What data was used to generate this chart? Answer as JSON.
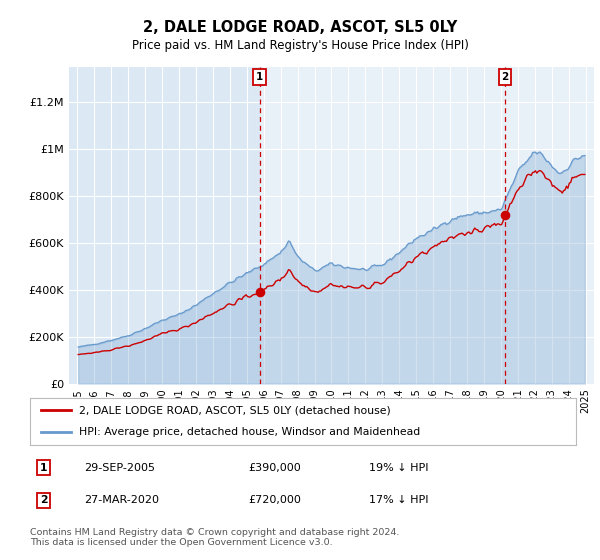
{
  "title": "2, DALE LODGE ROAD, ASCOT, SL5 0LY",
  "subtitle": "Price paid vs. HM Land Registry's House Price Index (HPI)",
  "legend_label_red": "2, DALE LODGE ROAD, ASCOT, SL5 0LY (detached house)",
  "legend_label_blue": "HPI: Average price, detached house, Windsor and Maidenhead",
  "annotation1_date": "29-SEP-2005",
  "annotation1_value": "£390,000",
  "annotation1_hpi": "19% ↓ HPI",
  "annotation2_date": "27-MAR-2020",
  "annotation2_value": "£720,000",
  "annotation2_hpi": "17% ↓ HPI",
  "footer": "Contains HM Land Registry data © Crown copyright and database right 2024.\nThis data is licensed under the Open Government Licence v3.0.",
  "bg_color": "#dce9f5",
  "white": "#ffffff",
  "red_color": "#cc0000",
  "blue_color": "#6699cc",
  "ylim": [
    0,
    1350000
  ],
  "yticks": [
    0,
    200000,
    400000,
    600000,
    800000,
    1000000,
    1200000
  ],
  "ytick_labels": [
    "£0",
    "£200K",
    "£400K",
    "£600K",
    "£800K",
    "£1M",
    "£1.2M"
  ],
  "sale1_x": 2005.75,
  "sale1_y": 390000,
  "sale2_x": 2020.25,
  "sale2_y": 720000,
  "xmin": 1994.5,
  "xmax": 2025.5,
  "xticks": [
    1995,
    1996,
    1997,
    1998,
    1999,
    2000,
    2001,
    2002,
    2003,
    2004,
    2005,
    2006,
    2007,
    2008,
    2009,
    2010,
    2011,
    2012,
    2013,
    2014,
    2015,
    2016,
    2017,
    2018,
    2019,
    2020,
    2021,
    2022,
    2023,
    2024,
    2025
  ]
}
